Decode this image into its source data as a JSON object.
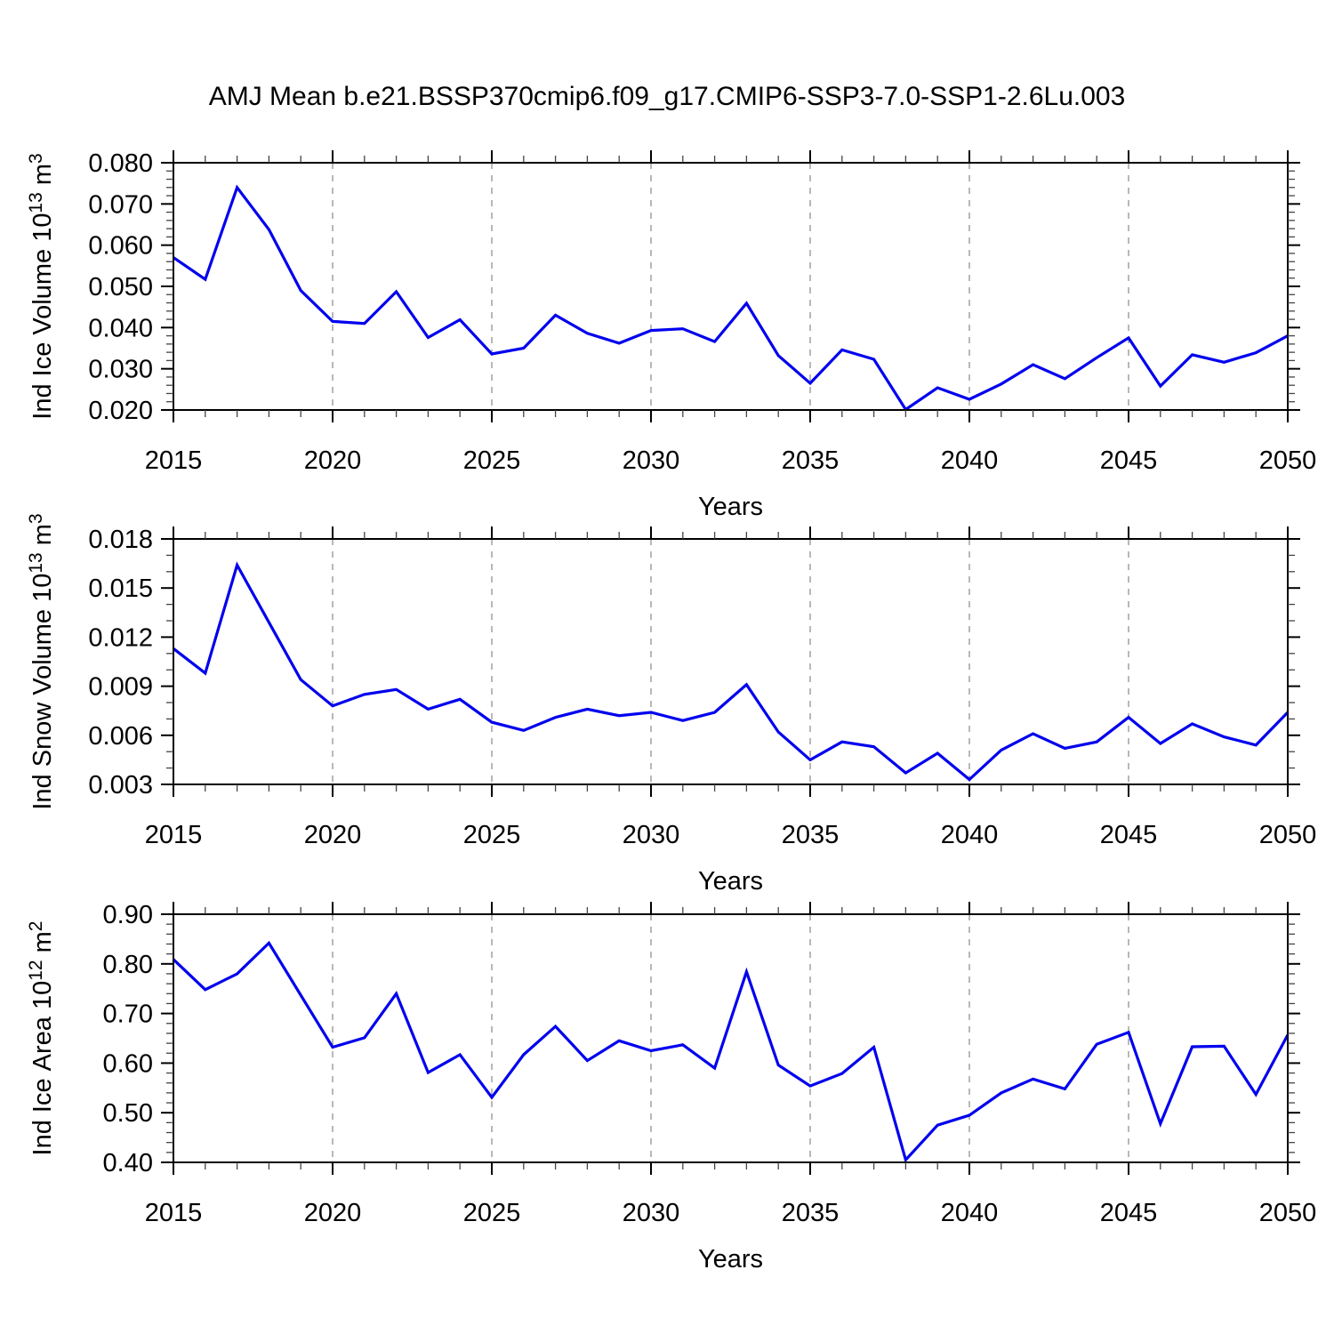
{
  "title": "AMJ Mean b.e21.BSSP370cmip6.f09_g17.CMIP6-SSP3-7.0-SSP1-2.6Lu.003",
  "colors": {
    "line": "#0000EE",
    "grid": "#999999",
    "axis": "#000000",
    "background": "#FFFFFF"
  },
  "x_axis": {
    "label": "Years",
    "min": 2015,
    "max": 2050,
    "major_ticks": [
      2015,
      2020,
      2025,
      2030,
      2035,
      2040,
      2045,
      2050
    ],
    "major_tick_labels": [
      "2015",
      "2020",
      "2025",
      "2030",
      "2035",
      "2040",
      "2045",
      "2050"
    ],
    "minor_tick_step": 1,
    "gridlines": [
      2020,
      2025,
      2030,
      2035,
      2040,
      2045
    ]
  },
  "years": [
    2015,
    2016,
    2017,
    2018,
    2019,
    2020,
    2021,
    2022,
    2023,
    2024,
    2025,
    2026,
    2027,
    2028,
    2029,
    2030,
    2031,
    2032,
    2033,
    2034,
    2035,
    2036,
    2037,
    2038,
    2039,
    2040,
    2041,
    2042,
    2043,
    2044,
    2045,
    2046,
    2047,
    2048,
    2049,
    2050
  ],
  "chart_data": [
    {
      "name": "ind-ice-volume",
      "type": "line",
      "ylabel_parts": [
        {
          "text": "Ind Ice Volume 10",
          "sup": false
        },
        {
          "text": "13",
          "sup": true
        },
        {
          "text": " m",
          "sup": false
        },
        {
          "text": "3",
          "sup": true
        }
      ],
      "ylabel_text": "Ind Ice Volume 10^13 m^3",
      "xlabel": "Years",
      "ylim": [
        0.02,
        0.08
      ],
      "ytick_values": [
        0.02,
        0.03,
        0.04,
        0.05,
        0.06,
        0.07,
        0.08
      ],
      "ytick_labels": [
        "0.020",
        "0.030",
        "0.040",
        "0.050",
        "0.060",
        "0.070",
        "0.080"
      ],
      "ytick_minor_step": 0.002,
      "grid_on": true,
      "values": [
        0.057,
        0.0517,
        0.074,
        0.0638,
        0.049,
        0.0415,
        0.041,
        0.0487,
        0.0376,
        0.0419,
        0.0336,
        0.035,
        0.043,
        0.0386,
        0.0362,
        0.0393,
        0.0397,
        0.0366,
        0.0459,
        0.0332,
        0.0265,
        0.0346,
        0.0323,
        0.0201,
        0.0254,
        0.0226,
        0.0263,
        0.031,
        0.0276,
        0.0327,
        0.0375,
        0.0258,
        0.0334,
        0.0316,
        0.0339,
        0.038
      ]
    },
    {
      "name": "ind-snow-volume",
      "type": "line",
      "ylabel_parts": [
        {
          "text": "Ind Snow Volume 10",
          "sup": false
        },
        {
          "text": "13",
          "sup": true
        },
        {
          "text": " m",
          "sup": false
        },
        {
          "text": "3",
          "sup": true
        }
      ],
      "ylabel_text": "Ind Snow Volume 10^13 m^3",
      "xlabel": "Years",
      "ylim": [
        0.003,
        0.018
      ],
      "ytick_values": [
        0.003,
        0.006,
        0.009,
        0.012,
        0.015,
        0.018
      ],
      "ytick_labels": [
        "0.003",
        "0.006",
        "0.009",
        "0.012",
        "0.015",
        "0.018"
      ],
      "ytick_minor_step": 0.001,
      "grid_on": true,
      "values": [
        0.0113,
        0.0098,
        0.0164,
        0.0129,
        0.0094,
        0.0078,
        0.0085,
        0.0088,
        0.0076,
        0.0082,
        0.0068,
        0.0063,
        0.0071,
        0.0076,
        0.0072,
        0.0074,
        0.0069,
        0.0074,
        0.0091,
        0.0062,
        0.0045,
        0.0056,
        0.0053,
        0.0037,
        0.0049,
        0.0033,
        0.0051,
        0.0061,
        0.0052,
        0.0056,
        0.0071,
        0.0055,
        0.0067,
        0.0059,
        0.0054,
        0.0074
      ]
    },
    {
      "name": "ind-ice-area",
      "type": "line",
      "ylabel_parts": [
        {
          "text": "Ind Ice Area 10",
          "sup": false
        },
        {
          "text": "12",
          "sup": true
        },
        {
          "text": " m",
          "sup": false
        },
        {
          "text": "2",
          "sup": true
        }
      ],
      "ylabel_text": "Ind Ice Area 10^12 m^2",
      "xlabel": "Years",
      "ylim": [
        0.4,
        0.9
      ],
      "ytick_values": [
        0.4,
        0.5,
        0.6,
        0.7,
        0.8,
        0.9
      ],
      "ytick_labels": [
        "0.40",
        "0.50",
        "0.60",
        "0.70",
        "0.80",
        "0.90"
      ],
      "ytick_minor_step": 0.02,
      "grid_on": true,
      "values": [
        0.809,
        0.748,
        0.78,
        0.842,
        0.737,
        0.632,
        0.651,
        0.74,
        0.581,
        0.617,
        0.531,
        0.617,
        0.674,
        0.605,
        0.645,
        0.625,
        0.637,
        0.59,
        0.784,
        0.596,
        0.554,
        0.579,
        0.632,
        0.405,
        0.475,
        0.495,
        0.54,
        0.568,
        0.548,
        0.638,
        0.662,
        0.478,
        0.633,
        0.634,
        0.537,
        0.657
      ]
    }
  ]
}
